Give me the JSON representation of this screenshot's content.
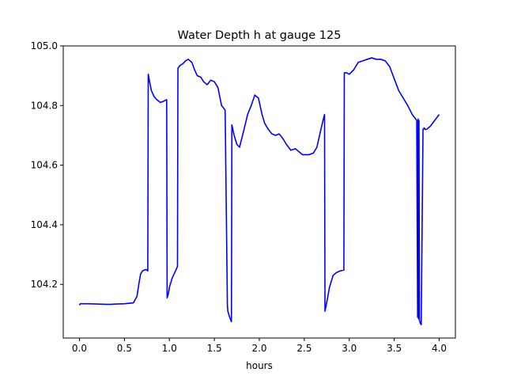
{
  "chart_data": {
    "type": "line",
    "title": "Water Depth h at gauge 125",
    "xlabel": "hours",
    "ylabel": "",
    "xlim": [
      -0.18,
      4.18
    ],
    "ylim": [
      104.02,
      105.0
    ],
    "xticks": [
      0.0,
      0.5,
      1.0,
      1.5,
      2.0,
      2.5,
      3.0,
      3.5,
      4.0
    ],
    "xtick_labels": [
      "0.0",
      "0.5",
      "1.0",
      "1.5",
      "2.0",
      "2.5",
      "3.0",
      "3.5",
      "4.0"
    ],
    "yticks": [
      104.2,
      104.4,
      104.6,
      104.8,
      105.0
    ],
    "ytick_labels": [
      "104.2",
      "104.4",
      "104.6",
      "104.8",
      "105.0"
    ],
    "grid": false,
    "series": [
      {
        "color": "#0000ff",
        "x": [
          0.0,
          0.01,
          0.1,
          0.2,
          0.3,
          0.35,
          0.4,
          0.5,
          0.6,
          0.64,
          0.66,
          0.68,
          0.7,
          0.72,
          0.74,
          0.76,
          0.765,
          0.78,
          0.8,
          0.83,
          0.86,
          0.9,
          0.94,
          0.97,
          0.975,
          0.99,
          1.0,
          1.03,
          1.06,
          1.09,
          1.095,
          1.12,
          1.15,
          1.18,
          1.21,
          1.25,
          1.28,
          1.31,
          1.35,
          1.38,
          1.42,
          1.46,
          1.5,
          1.54,
          1.58,
          1.62,
          1.645,
          1.65,
          1.67,
          1.69,
          1.695,
          1.72,
          1.75,
          1.78,
          1.83,
          1.87,
          1.91,
          1.95,
          1.99,
          2.03,
          2.06,
          2.1,
          2.14,
          2.18,
          2.22,
          2.26,
          2.3,
          2.35,
          2.4,
          2.44,
          2.48,
          2.52,
          2.55,
          2.6,
          2.64,
          2.67,
          2.7,
          2.725,
          2.73,
          2.75,
          2.78,
          2.82,
          2.86,
          2.9,
          2.94,
          2.945,
          2.97,
          3.0,
          3.05,
          3.1,
          3.15,
          3.2,
          3.25,
          3.3,
          3.35,
          3.4,
          3.45,
          3.5,
          3.55,
          3.6,
          3.65,
          3.7,
          3.75,
          3.76,
          3.765,
          3.77,
          3.775,
          3.78,
          3.79,
          3.8,
          3.82,
          3.835,
          3.84,
          3.86,
          3.9,
          3.95,
          4.0
        ],
        "y": [
          104.13,
          104.135,
          104.135,
          104.134,
          104.133,
          104.133,
          104.134,
          104.135,
          104.138,
          104.16,
          104.2,
          104.235,
          104.245,
          104.248,
          104.25,
          104.245,
          104.905,
          104.88,
          104.85,
          104.83,
          104.82,
          104.81,
          104.815,
          104.82,
          104.155,
          104.17,
          104.19,
          104.22,
          104.24,
          104.26,
          104.925,
          104.935,
          104.94,
          104.95,
          104.955,
          104.945,
          104.92,
          104.9,
          104.895,
          104.88,
          104.87,
          104.885,
          104.88,
          104.86,
          104.8,
          104.785,
          104.13,
          104.11,
          104.09,
          104.075,
          104.735,
          104.7,
          104.67,
          104.66,
          104.72,
          104.77,
          104.8,
          104.835,
          104.825,
          104.77,
          104.74,
          104.72,
          104.705,
          104.7,
          104.705,
          104.69,
          104.67,
          104.65,
          104.655,
          104.645,
          104.635,
          104.635,
          104.635,
          104.64,
          104.66,
          104.7,
          104.74,
          104.77,
          104.11,
          104.14,
          104.19,
          104.23,
          104.24,
          104.245,
          104.248,
          104.91,
          104.91,
          104.905,
          104.92,
          104.945,
          104.95,
          104.955,
          104.96,
          104.955,
          104.955,
          104.95,
          104.93,
          104.89,
          104.85,
          104.825,
          104.8,
          104.77,
          104.75,
          104.09,
          104.755,
          104.085,
          104.75,
          104.08,
          104.07,
          104.065,
          104.72,
          104.725,
          104.72,
          104.72,
          104.73,
          104.75,
          104.77
        ]
      }
    ]
  }
}
